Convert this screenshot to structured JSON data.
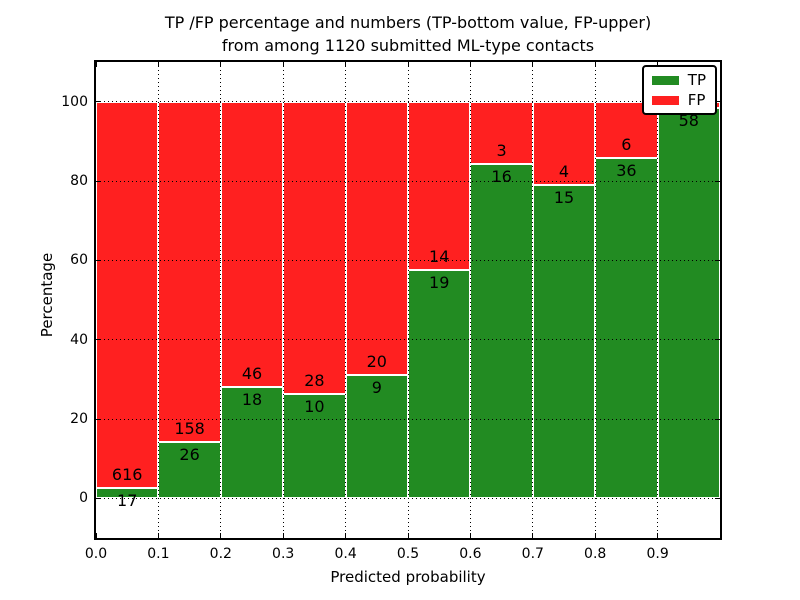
{
  "figure": {
    "title_line1": "TP /FP percentage and numbers (TP-bottom value, FP-upper)",
    "title_line2": "from among 1120 submitted ML-type contacts",
    "xlabel": "Predicted probability",
    "ylabel": "Percentage"
  },
  "legend": {
    "position": "upper-right",
    "items": [
      {
        "label": "TP",
        "color": "#228b22"
      },
      {
        "label": "FP",
        "color": "#ff2020"
      }
    ]
  },
  "chart_data": {
    "type": "bar",
    "stacked": true,
    "title": "TP /FP percentage and numbers (TP-bottom value, FP-upper)\nfrom among 1120 submitted ML-type contacts",
    "xlabel": "Predicted probability",
    "ylabel": "Percentage",
    "total_submitted_contacts": 1120,
    "xlim": [
      0.0,
      1.0
    ],
    "ylim": [
      -10,
      110
    ],
    "bar_width": 0.1,
    "grid": "dotted",
    "grid_above_bars": true,
    "bar_edge_color": "#ffffff",
    "legend_position": "upper-right",
    "x_ticks": [
      "0.0",
      "0.1",
      "0.2",
      "0.3",
      "0.4",
      "0.5",
      "0.6",
      "0.7",
      "0.8",
      "0.9"
    ],
    "y_ticks": [
      0,
      20,
      40,
      60,
      80,
      100
    ],
    "series": [
      {
        "name": "TP",
        "color": "#228b22"
      },
      {
        "name": "FP",
        "color": "#ff2020"
      }
    ],
    "bars": [
      {
        "bin_start": 0.0,
        "tp": 17,
        "fp": 616,
        "tp_percent": 2.7,
        "fp_label_visible": true
      },
      {
        "bin_start": 0.1,
        "tp": 26,
        "fp": 158,
        "tp_percent": 14.1,
        "fp_label_visible": true
      },
      {
        "bin_start": 0.2,
        "tp": 18,
        "fp": 46,
        "tp_percent": 28.1,
        "fp_label_visible": true
      },
      {
        "bin_start": 0.3,
        "tp": 10,
        "fp": 28,
        "tp_percent": 26.3,
        "fp_label_visible": true
      },
      {
        "bin_start": 0.4,
        "tp": 9,
        "fp": 20,
        "tp_percent": 31.0,
        "fp_label_visible": true
      },
      {
        "bin_start": 0.5,
        "tp": 19,
        "fp": 14,
        "tp_percent": 57.6,
        "fp_label_visible": true
      },
      {
        "bin_start": 0.6,
        "tp": 16,
        "fp": 3,
        "tp_percent": 84.2,
        "fp_label_visible": true
      },
      {
        "bin_start": 0.7,
        "tp": 15,
        "fp": 4,
        "tp_percent": 78.9,
        "fp_label_visible": true
      },
      {
        "bin_start": 0.8,
        "tp": 36,
        "fp": 6,
        "tp_percent": 85.7,
        "fp_label_visible": true
      },
      {
        "bin_start": 0.9,
        "tp": 58,
        "fp": null,
        "tp_percent": 98.3,
        "fp_label_visible": false
      }
    ]
  }
}
